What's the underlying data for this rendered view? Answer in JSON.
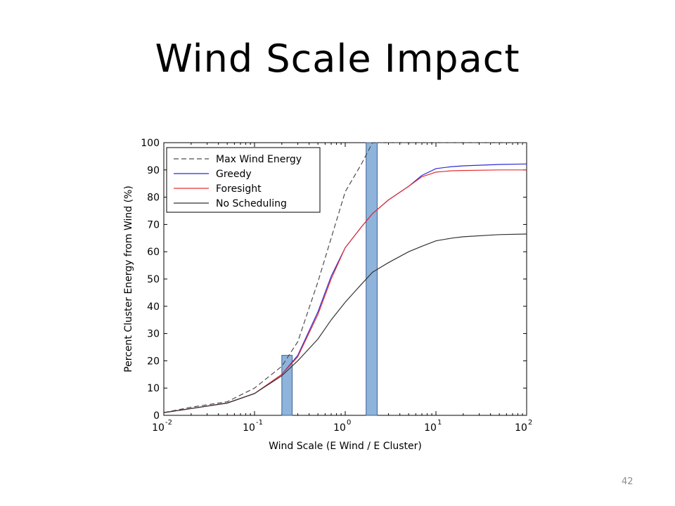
{
  "slide": {
    "title": "Wind Scale Impact",
    "page_number": "42"
  },
  "chart_data": {
    "type": "line",
    "xlabel": "Wind Scale (E Wind / E Cluster)",
    "ylabel": "Percent Cluster Energy from Wind (%)",
    "x_scale": "log",
    "xlim": [
      0.01,
      100
    ],
    "ylim": [
      0,
      100
    ],
    "x_ticks": [
      {
        "base": "10",
        "exp": "-2"
      },
      {
        "base": "10",
        "exp": "-1"
      },
      {
        "base": "10",
        "exp": "0"
      },
      {
        "base": "10",
        "exp": "1"
      },
      {
        "base": "10",
        "exp": "2"
      }
    ],
    "y_ticks": [
      "0",
      "10",
      "20",
      "30",
      "40",
      "50",
      "60",
      "70",
      "80",
      "90",
      "100"
    ],
    "legend_position": "top-left",
    "series": [
      {
        "name": "Max Wind Energy",
        "color": "#4d4d4d",
        "style": "dashed",
        "x": [
          0.01,
          0.02,
          0.05,
          0.1,
          0.2,
          0.3,
          0.5,
          1.0,
          1.5,
          2.0,
          5,
          10,
          20,
          50,
          100
        ],
        "y": [
          1,
          3,
          5,
          10,
          18,
          27,
          49,
          82,
          92,
          100,
          100,
          100,
          100,
          100,
          100
        ]
      },
      {
        "name": "Greedy",
        "color": "#2b2bd6",
        "style": "solid",
        "x": [
          0.01,
          0.02,
          0.05,
          0.1,
          0.2,
          0.3,
          0.5,
          0.7,
          1.0,
          1.5,
          2.0,
          3,
          5,
          7,
          10,
          15,
          20,
          50,
          100
        ],
        "y": [
          1,
          2.5,
          4.5,
          8,
          15,
          22,
          38,
          51,
          61.5,
          69,
          74,
          79,
          84,
          88,
          90.5,
          91.2,
          91.5,
          92,
          92.2
        ]
      },
      {
        "name": "Foresight",
        "color": "#e53030",
        "style": "solid",
        "x": [
          0.01,
          0.02,
          0.05,
          0.1,
          0.2,
          0.3,
          0.5,
          0.7,
          1.0,
          1.5,
          2.0,
          3,
          5,
          7,
          10,
          15,
          20,
          50,
          100
        ],
        "y": [
          1,
          2.5,
          4.5,
          8,
          15,
          21.5,
          37,
          50,
          61.5,
          69,
          74,
          79,
          84,
          87.5,
          89.2,
          89.7,
          89.8,
          90,
          90
        ]
      },
      {
        "name": "No Scheduling",
        "color": "#333333",
        "style": "solid",
        "x": [
          0.01,
          0.02,
          0.05,
          0.1,
          0.2,
          0.3,
          0.5,
          0.7,
          1.0,
          1.5,
          2.0,
          3,
          5,
          7,
          10,
          15,
          20,
          50,
          100
        ],
        "y": [
          1,
          2.5,
          4.5,
          8,
          14.5,
          20,
          28,
          35,
          41.5,
          48,
          52.5,
          56,
          60,
          62,
          64,
          65,
          65.5,
          66.3,
          66.5
        ]
      }
    ],
    "highlight_bars": [
      {
        "x_min": 0.2,
        "x_max": 0.26,
        "y": 22,
        "color": "#8fb4dc"
      },
      {
        "x_min": 1.7,
        "x_max": 2.25,
        "y": 100,
        "color": "#8fb4dc"
      }
    ]
  }
}
